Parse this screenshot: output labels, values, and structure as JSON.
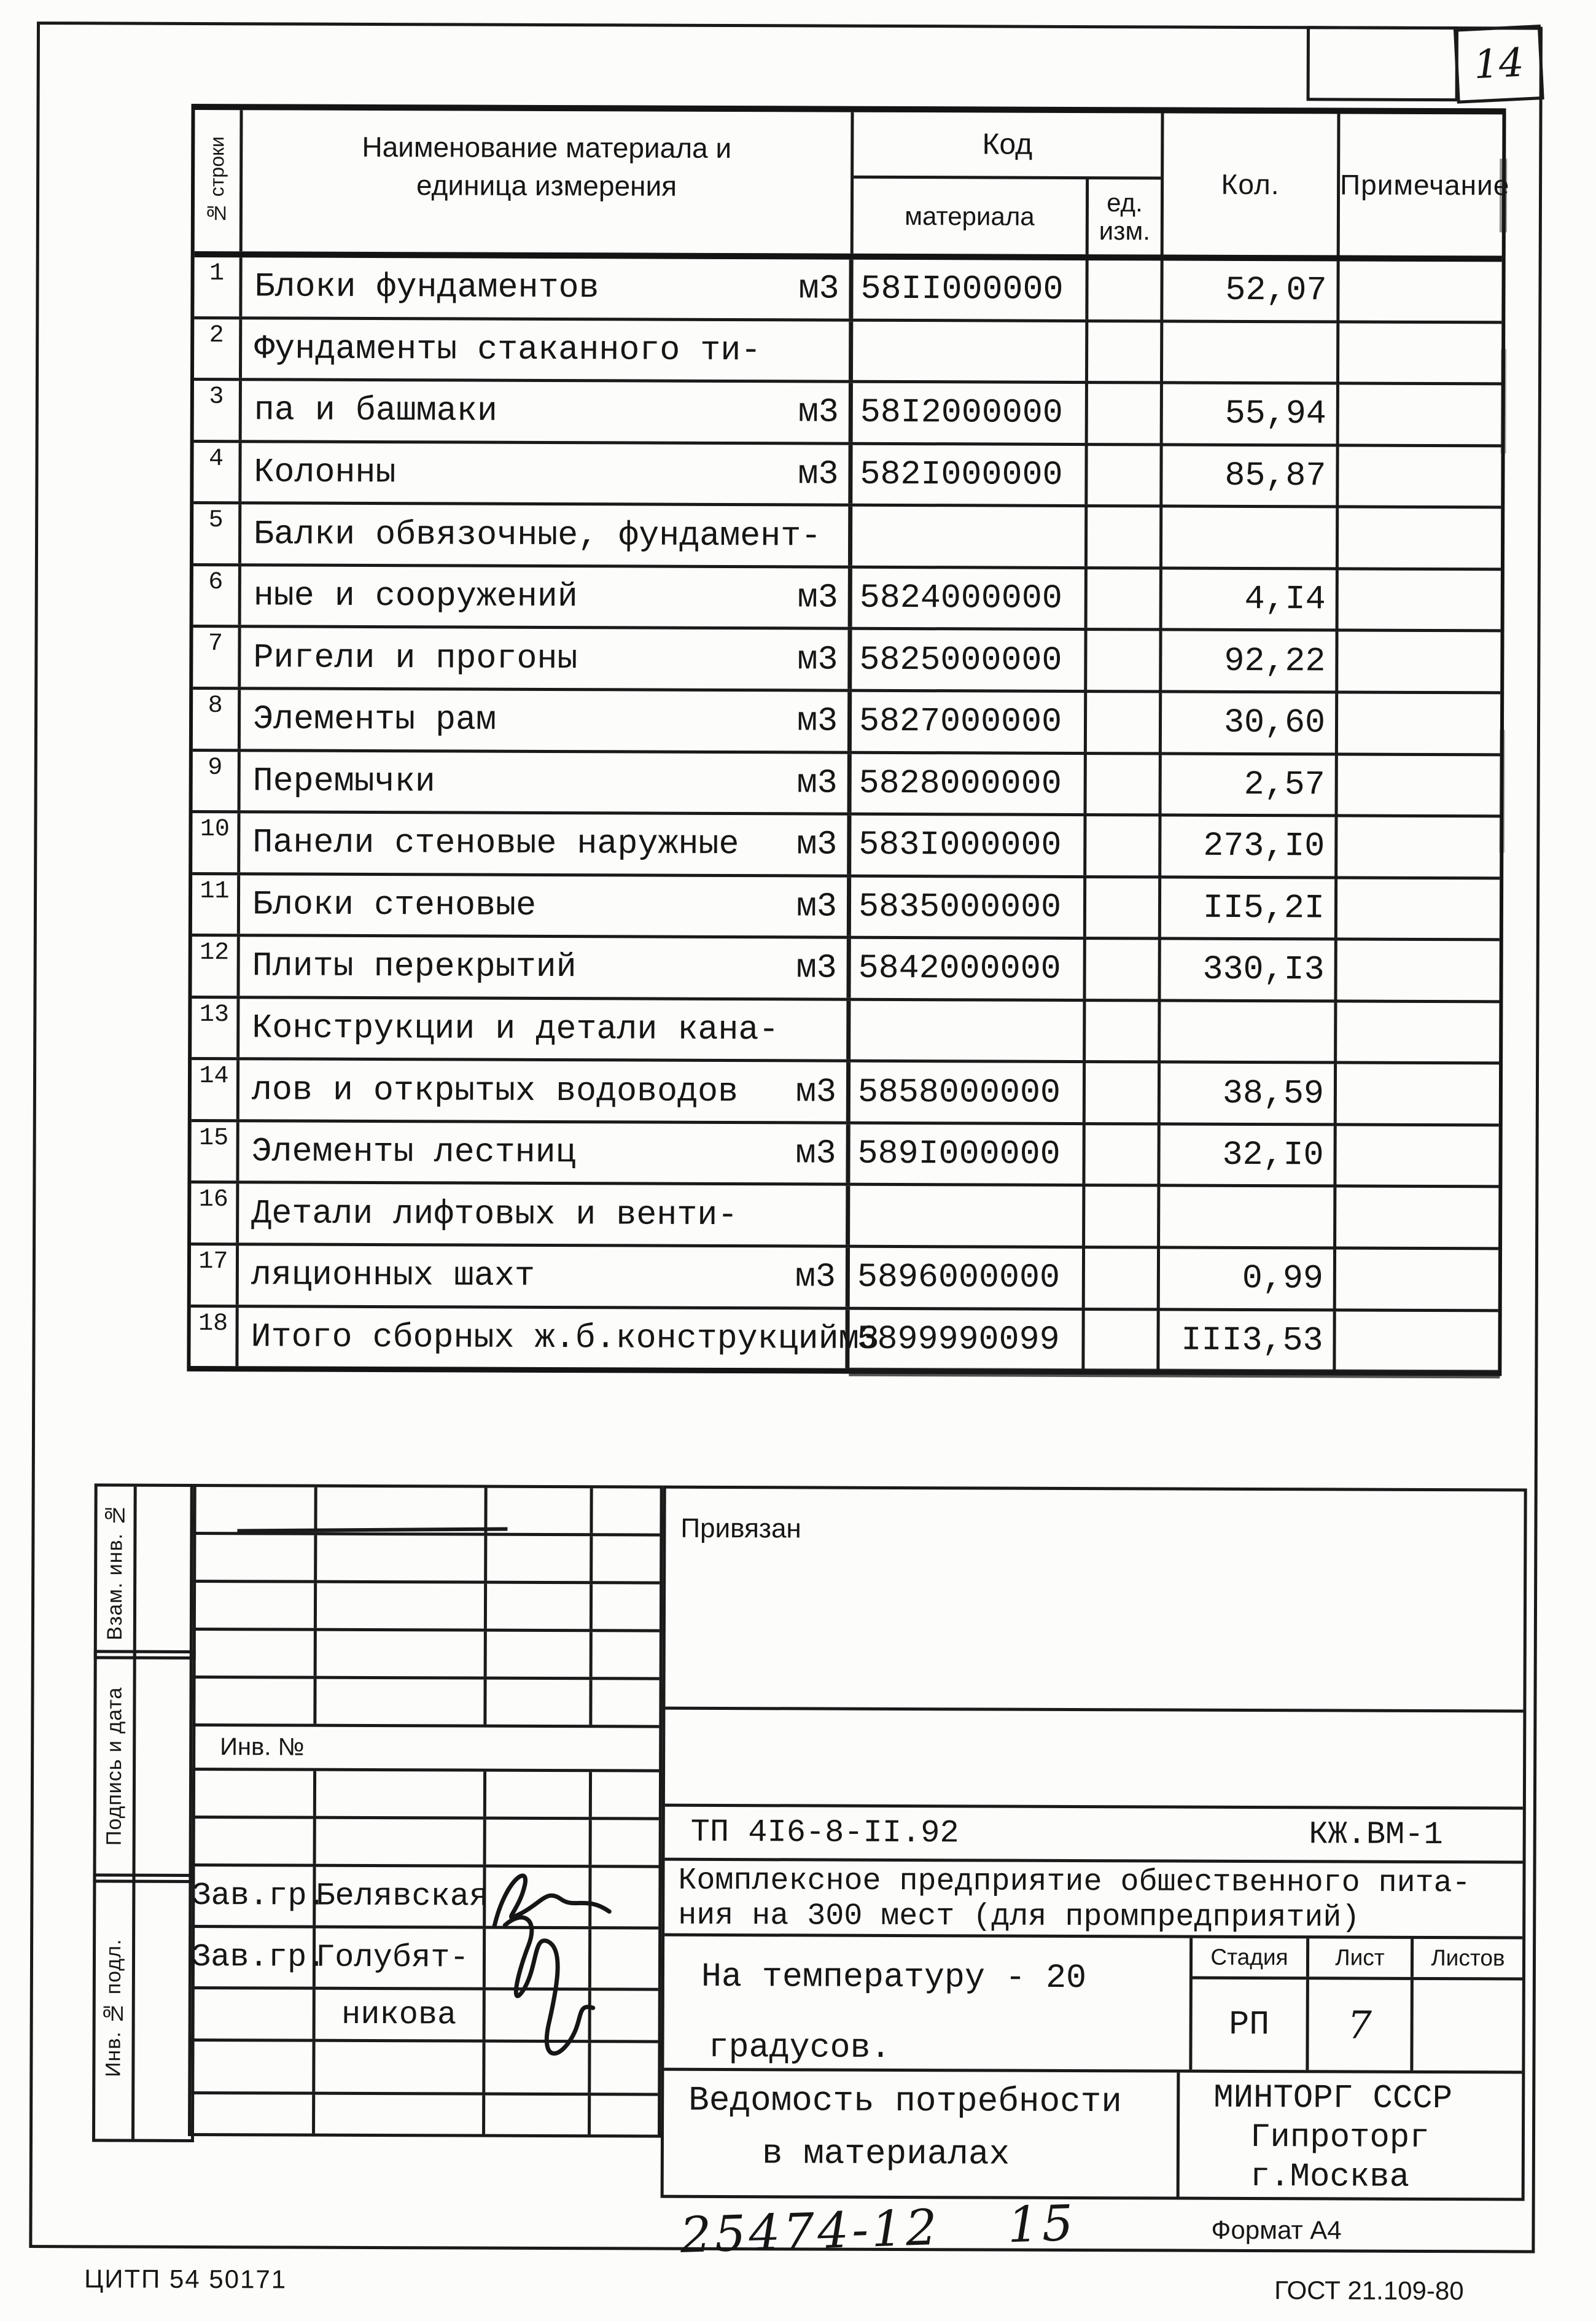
{
  "page": {
    "number": "14",
    "plant_code": "ЦИТП 54 50171",
    "standard": "ГОСТ 21.109-80",
    "format_label": "Формат А4",
    "handwritten_doc": "25474-12",
    "handwritten_sheet": "15"
  },
  "materials_table": {
    "headers": {
      "row_no": "№ строки",
      "name_line1": "Наименование материала и",
      "name_line2": "единица измерения",
      "code_group": "Код",
      "code_material": "материала",
      "code_unit_line1": "ед.",
      "code_unit_line2": "изм.",
      "qty": "Кол.",
      "note": "Примечание"
    },
    "rows": [
      {
        "no": "1",
        "name": "Блоки фундаментов",
        "unit": "м3",
        "code": "58II000000",
        "qty": "52,07"
      },
      {
        "no": "2",
        "name": "Фундаменты стаканного ти-",
        "unit": "",
        "code": "",
        "qty": ""
      },
      {
        "no": "3",
        "name": "па и башмаки",
        "unit": "м3",
        "code": "58I2000000",
        "qty": "55,94"
      },
      {
        "no": "4",
        "name": "Колонны",
        "unit": "м3",
        "code": "582I000000",
        "qty": "85,87"
      },
      {
        "no": "5",
        "name": "Балки обвязочные, фундамент-",
        "unit": "",
        "code": "",
        "qty": ""
      },
      {
        "no": "6",
        "name": "ные и сооружений",
        "unit": "м3",
        "code": "5824000000",
        "qty": "4,I4"
      },
      {
        "no": "7",
        "name": "Ригели и прогоны",
        "unit": "м3",
        "code": "5825000000",
        "qty": "92,22"
      },
      {
        "no": "8",
        "name": "Элементы рам",
        "unit": "м3",
        "code": "5827000000",
        "qty": "30,60"
      },
      {
        "no": "9",
        "name": "Перемычки",
        "unit": "м3",
        "code": "5828000000",
        "qty": "2,57"
      },
      {
        "no": "10",
        "name": "Панели стеновые наружные",
        "unit": "м3",
        "code": "583I000000",
        "qty": "273,I0"
      },
      {
        "no": "11",
        "name": "Блоки стеновые",
        "unit": "м3",
        "code": "5835000000",
        "qty": "II5,2I"
      },
      {
        "no": "12",
        "name": "Плиты перекрытий",
        "unit": "м3",
        "code": "5842000000",
        "qty": "330,I3"
      },
      {
        "no": "13",
        "name": "Конструкции и детали кана-",
        "unit": "",
        "code": "",
        "qty": ""
      },
      {
        "no": "14",
        "name": "лов и открытых водоводов",
        "unit": "м3",
        "code": "5858000000",
        "qty": "38,59"
      },
      {
        "no": "15",
        "name": "Элементы лестниц",
        "unit": "м3",
        "code": "589I000000",
        "qty": "32,I0"
      },
      {
        "no": "16",
        "name": "Детали лифтовых и венти-",
        "unit": "",
        "code": "",
        "qty": ""
      },
      {
        "no": "17",
        "name": "ляционных шахт",
        "unit": "м3",
        "code": "5896000000",
        "qty": "0,99"
      },
      {
        "no": "18",
        "name": "Итого сборных ж.б.конструкций",
        "unit": "м3",
        "code": "5899990099",
        "qty": "III3,53"
      }
    ]
  },
  "title_block": {
    "side_labels": [
      "Взам. инв. №",
      "Подпись и дата",
      "Инв. № подл."
    ],
    "inv_label": "Инв. №",
    "attached_label": "Привязан",
    "signers": [
      {
        "role": "Зав.гр.",
        "name": "Белявская"
      },
      {
        "role": "Зав.гр.",
        "name": "Голубят-",
        "name2": "никова"
      }
    ],
    "doc_code": "ТП 4I6-8-II.92",
    "sheet_code": "КЖ.ВМ-1",
    "project_line1": "Комплексное предприятие обшественного пита-",
    "project_line2": "ния на 300 мест (для промпредприятий)",
    "condition_line1": "На температуру  - 20",
    "condition_line2": "градусов.",
    "stage_label": "Стадия",
    "sheet_label": "Лист",
    "sheets_label": "Листов",
    "stage_value": "РП",
    "sheet_value": "7",
    "sheets_value": "",
    "doc_title_line1": "Ведомость потребности",
    "doc_title_line2": "в материалах",
    "org_line1": "МИНТОРГ СССР",
    "org_line2": "Гипроторг",
    "org_line3": "г.Москва"
  }
}
